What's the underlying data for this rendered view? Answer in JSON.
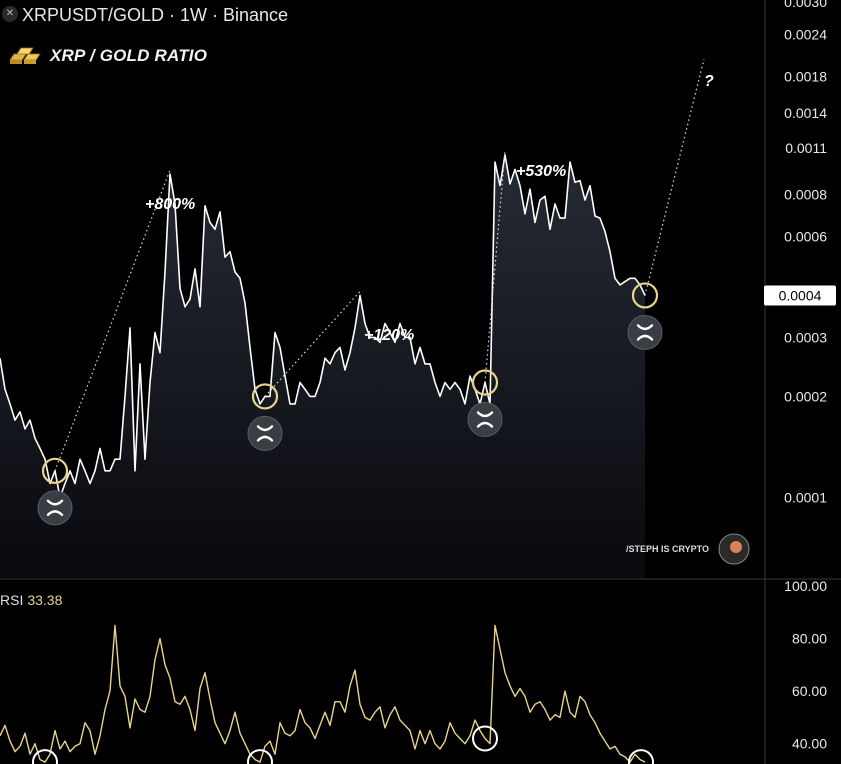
{
  "header": {
    "symbol_icon": "close-circle-icon",
    "title": "XRPUSDT/GOLD · 1W · Binance"
  },
  "brand": {
    "icon": "gold-bars-icon",
    "label": "XRP / GOLD RATIO"
  },
  "watermark": "/STEPH IS CRYPTO",
  "colors": {
    "background": "#000000",
    "price_line": "#ffffff",
    "rsi_line": "#e8d48a",
    "marker_ring": "#e8d48a",
    "accent_white": "#ffffff"
  },
  "chart_data": [
    {
      "type": "line",
      "name_shown": "XRP / GOLD RATIO",
      "y_scale": "log",
      "price_label": "0.0004",
      "y_ticks": [
        "0.0030",
        "0.0024",
        "0.0018",
        "0.0014",
        "0.0011",
        "0.0008",
        "0.0006",
        "0.0004",
        "0.0003",
        "0.0002",
        "0.0001"
      ],
      "annotations": [
        "+800%",
        "+120%",
        "+530%",
        "?"
      ],
      "marker_icons": "xrp-logo-icon",
      "x": [
        0,
        1,
        2,
        3,
        4,
        5,
        6,
        7,
        8,
        9,
        10,
        11,
        12,
        13,
        14,
        15,
        16,
        17,
        18,
        19,
        20,
        21,
        22,
        23,
        24,
        25,
        26,
        27,
        28,
        29,
        30,
        31,
        32,
        33,
        34,
        35,
        36,
        37,
        38,
        39,
        40,
        41,
        42,
        43,
        44,
        45,
        46,
        47,
        48,
        49,
        50,
        51,
        52,
        53,
        54,
        55,
        56,
        57,
        58,
        59,
        60,
        61,
        62,
        63,
        64,
        65,
        66,
        67,
        68,
        69,
        70,
        71,
        72,
        73,
        74,
        75,
        76,
        77,
        78,
        79,
        80,
        81,
        82,
        83,
        84,
        85,
        86,
        87,
        88,
        89,
        90,
        91,
        92,
        93,
        94,
        95,
        96,
        97,
        98,
        99,
        100,
        101,
        102,
        103,
        104,
        105,
        106,
        107,
        108,
        109,
        110,
        111,
        112,
        113,
        114,
        115,
        116,
        117,
        118,
        119,
        120,
        121,
        122,
        123,
        124,
        125,
        126,
        127,
        128,
        129
      ],
      "values": [
        0.00026,
        0.00021,
        0.00019,
        0.00017,
        0.00018,
        0.00016,
        0.00017,
        0.00015,
        0.00014,
        0.00013,
        0.00011,
        0.00012,
        0.0001,
        0.00011,
        0.00012,
        0.00011,
        0.00013,
        0.00012,
        0.00011,
        0.00012,
        0.00014,
        0.00012,
        0.00012,
        0.00013,
        0.00013,
        0.0002,
        0.00032,
        0.00012,
        0.00025,
        0.00013,
        0.00022,
        0.00031,
        0.00027,
        0.00047,
        0.00092,
        0.00075,
        0.00042,
        0.00037,
        0.00039,
        0.00048,
        0.00037,
        0.00074,
        0.00066,
        0.00063,
        0.00071,
        0.00052,
        0.00054,
        0.00047,
        0.00045,
        0.00038,
        0.00028,
        0.00021,
        0.00019,
        0.0002,
        0.0002,
        0.00031,
        0.00028,
        0.00023,
        0.00019,
        0.00019,
        0.00022,
        0.00021,
        0.0002,
        0.0002,
        0.00022,
        0.00026,
        0.00025,
        0.00027,
        0.00028,
        0.00024,
        0.00027,
        0.00032,
        0.0004,
        0.00033,
        0.0003,
        0.0003,
        0.00029,
        0.00033,
        0.00031,
        0.00029,
        0.00033,
        0.0003,
        0.0003,
        0.00025,
        0.00028,
        0.00025,
        0.00025,
        0.00022,
        0.0002,
        0.00022,
        0.00021,
        0.00022,
        0.00021,
        0.00019,
        0.00023,
        0.00021,
        0.00019,
        0.00022,
        0.00019,
        0.001,
        0.00085,
        0.00105,
        0.00086,
        0.00095,
        0.00085,
        0.0007,
        0.00083,
        0.00066,
        0.00077,
        0.00079,
        0.00063,
        0.00075,
        0.00068,
        0.00068,
        0.001,
        0.00087,
        0.00088,
        0.00077,
        0.00085,
        0.00069,
        0.00068,
        0.00062,
        0.00054,
        0.00045,
        0.00043,
        0.00044,
        0.00045,
        0.00045,
        0.00043,
        0.0004
      ],
      "projection": {
        "to_value": 0.0022,
        "label": "?"
      }
    },
    {
      "type": "line",
      "name_shown": "RSI",
      "current_value": "33.38",
      "y_ticks": [
        "100.00",
        "80.00",
        "60.00",
        "40.00"
      ],
      "ylim": [
        30,
        100
      ],
      "values": [
        43,
        47,
        41,
        37,
        39,
        44,
        36,
        40,
        34,
        33,
        36,
        45,
        38,
        41,
        37,
        39,
        40,
        48,
        45,
        36,
        43,
        53,
        60,
        85,
        62,
        58,
        46,
        57,
        53,
        52,
        58,
        72,
        80,
        70,
        65,
        56,
        55,
        58,
        53,
        45,
        61,
        67,
        57,
        48,
        44,
        40,
        45,
        52,
        44,
        40,
        36,
        34,
        33,
        39,
        41,
        36,
        48,
        44,
        43,
        45,
        53,
        48,
        46,
        42,
        47,
        52,
        47,
        56,
        56,
        52,
        62,
        68,
        55,
        50,
        49,
        52,
        54,
        46,
        51,
        54,
        49,
        47,
        45,
        38,
        45,
        40,
        45,
        40,
        38,
        41,
        48,
        44,
        42,
        40,
        43,
        49,
        45,
        42,
        40,
        85,
        76,
        67,
        62,
        58,
        61,
        58,
        52,
        55,
        56,
        53,
        49,
        51,
        50,
        60,
        52,
        50,
        58,
        56,
        51,
        48,
        44,
        41,
        38,
        39,
        36,
        35,
        33,
        36,
        34,
        33
      ]
    }
  ]
}
